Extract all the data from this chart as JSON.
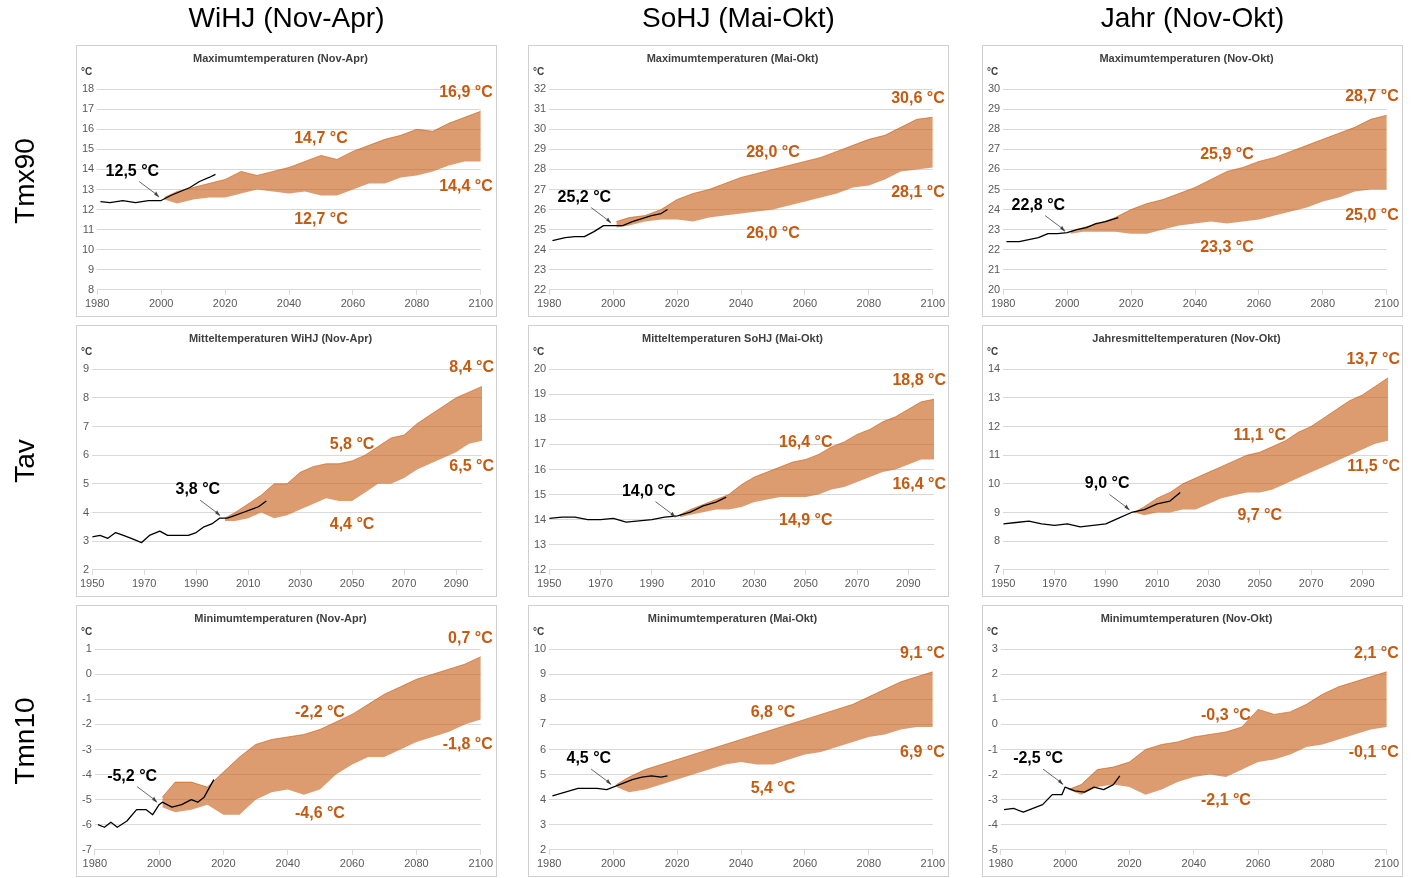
{
  "chart_data": [
    {
      "type": "line",
      "title": "WiHJ (Nov-Apr)",
      "subtitle": "Maximumtemperaturen (Nov-Apr)",
      "ylabel": "°C",
      "xlim": [
        1980,
        2100
      ],
      "xticks": [
        1980,
        2000,
        2020,
        2040,
        2060,
        2080,
        2100
      ],
      "ylim": [
        8,
        18
      ],
      "yticks": [
        8,
        9,
        10,
        11,
        12,
        13,
        14,
        15,
        16,
        17,
        18
      ],
      "grid": "y",
      "legend": false,
      "marker": "none",
      "line_style": "solid",
      "series": [
        {
          "color": "#000000",
          "x": [
            1981,
            1984,
            1988,
            1992,
            1996,
            2000,
            2003,
            2006,
            2009,
            2012,
            2015,
            2017
          ],
          "values": [
            12.4,
            12.35,
            12.45,
            12.35,
            12.45,
            12.45,
            12.7,
            12.9,
            13.1,
            13.4,
            13.6,
            13.75
          ]
        },
        {
          "color": "#c55a11",
          "x": [
            2001,
            2005,
            2010,
            2015,
            2020,
            2025,
            2030,
            2035,
            2040,
            2045,
            2050,
            2055,
            2060,
            2065,
            2070,
            2075,
            2080,
            2085,
            2090,
            2095,
            2100
          ],
          "values": [
            12.6,
            12.9,
            13.1,
            13.3,
            13.5,
            13.9,
            13.7,
            13.9,
            14.1,
            14.4,
            14.7,
            14.5,
            14.9,
            15.2,
            15.5,
            15.7,
            16.0,
            15.9,
            16.3,
            16.6,
            16.9
          ],
          "upper": [
            12.6,
            12.9,
            13.1,
            13.3,
            13.5,
            13.9,
            13.7,
            13.9,
            14.1,
            14.4,
            14.7,
            14.5,
            14.9,
            15.2,
            15.5,
            15.7,
            16.0,
            15.9,
            16.3,
            16.6,
            16.9
          ],
          "lower": [
            12.5,
            12.3,
            12.5,
            12.6,
            12.6,
            12.8,
            13.0,
            12.9,
            12.8,
            12.9,
            12.7,
            12.7,
            13.0,
            13.3,
            13.3,
            13.6,
            13.7,
            13.9,
            14.2,
            14.4,
            14.4
          ]
        }
      ],
      "annotations": [
        "Tmx90",
        {
          "text": "12,5 °C",
          "x": 2000,
          "y": 12.5
        },
        {
          "text": "14,7 °C",
          "x": 2050,
          "y": 14.7
        },
        {
          "text": "12,7 °C",
          "x": 2050,
          "y": 12.7
        },
        {
          "text": "16,9 °C",
          "x": 2100,
          "y": 16.9
        },
        {
          "text": "14,4 °C",
          "x": 2100,
          "y": 14.4
        }
      ]
    },
    {
      "type": "line",
      "title": "SoHJ (Mai-Okt)",
      "subtitle": "Maximumtemperaturen (Mai-Okt)",
      "ylabel": "°C",
      "xlim": [
        1980,
        2100
      ],
      "xticks": [
        1980,
        2000,
        2020,
        2040,
        2060,
        2080,
        2100
      ],
      "ylim": [
        22,
        32
      ],
      "yticks": [
        22,
        23,
        24,
        25,
        26,
        27,
        28,
        29,
        30,
        31,
        32
      ],
      "grid": "y",
      "legend": false,
      "marker": "none",
      "line_style": "solid",
      "series": [
        {
          "color": "#000000",
          "x": [
            1981,
            1985,
            1988,
            1991,
            1994,
            1997,
            2000,
            2003,
            2006,
            2009,
            2012,
            2015,
            2017
          ],
          "values": [
            24.45,
            24.6,
            24.65,
            24.65,
            24.9,
            25.2,
            25.2,
            25.2,
            25.4,
            25.55,
            25.7,
            25.8,
            26.0
          ]
        },
        {
          "color": "#c55a11",
          "x": [
            2001,
            2005,
            2010,
            2015,
            2020,
            2025,
            2030,
            2035,
            2040,
            2045,
            2050,
            2055,
            2060,
            2065,
            2070,
            2075,
            2080,
            2085,
            2090,
            2095,
            2100
          ],
          "values": [
            25.4,
            25.6,
            25.7,
            26.0,
            26.5,
            26.8,
            27.0,
            27.3,
            27.6,
            27.8,
            28.0,
            28.2,
            28.4,
            28.6,
            28.9,
            29.2,
            29.5,
            29.7,
            30.1,
            30.5,
            30.6
          ],
          "upper": [
            25.4,
            25.6,
            25.7,
            26.0,
            26.5,
            26.8,
            27.0,
            27.3,
            27.6,
            27.8,
            28.0,
            28.2,
            28.4,
            28.6,
            28.9,
            29.2,
            29.5,
            29.7,
            30.1,
            30.5,
            30.6
          ],
          "lower": [
            25.1,
            25.2,
            25.4,
            25.5,
            25.5,
            25.4,
            25.6,
            25.7,
            25.8,
            25.9,
            26.0,
            26.2,
            26.4,
            26.6,
            26.8,
            27.1,
            27.2,
            27.5,
            27.9,
            28.0,
            28.1
          ]
        }
      ],
      "annotations": [
        {
          "text": "25,2 °C",
          "x": 2000,
          "y": 25.2
        },
        {
          "text": "28,0 °C",
          "x": 2050,
          "y": 28.0
        },
        {
          "text": "26,0 °C",
          "x": 2050,
          "y": 26.0
        },
        {
          "text": "30,6 °C",
          "x": 2100,
          "y": 30.6
        },
        {
          "text": "28,1 °C",
          "x": 2100,
          "y": 28.1
        }
      ]
    },
    {
      "type": "line",
      "title": "Jahr (Nov-Okt)",
      "subtitle": "Maximumtemperaturen (Nov-Okt)",
      "ylabel": "°C",
      "xlim": [
        1980,
        2100
      ],
      "xticks": [
        1980,
        2000,
        2020,
        2040,
        2060,
        2080,
        2100
      ],
      "ylim": [
        20,
        30
      ],
      "yticks": [
        20,
        21,
        22,
        23,
        24,
        25,
        26,
        27,
        28,
        29,
        30
      ],
      "grid": "y",
      "legend": false,
      "marker": "none",
      "line_style": "solid",
      "series": [
        {
          "color": "#000000",
          "x": [
            1981,
            1985,
            1988,
            1991,
            1994,
            1997,
            2000,
            2003,
            2006,
            2009,
            2012,
            2016
          ],
          "values": [
            22.4,
            22.4,
            22.5,
            22.6,
            22.8,
            22.8,
            22.85,
            23.0,
            23.1,
            23.3,
            23.4,
            23.6
          ]
        },
        {
          "color": "#c55a11",
          "x": [
            2001,
            2005,
            2010,
            2015,
            2020,
            2025,
            2030,
            2035,
            2040,
            2045,
            2050,
            2055,
            2060,
            2065,
            2070,
            2075,
            2080,
            2085,
            2090,
            2095,
            2100
          ],
          "values": [
            22.9,
            23.1,
            23.3,
            23.6,
            24.0,
            24.3,
            24.5,
            24.8,
            25.1,
            25.5,
            25.9,
            26.1,
            26.4,
            26.6,
            26.9,
            27.2,
            27.5,
            27.8,
            28.1,
            28.5,
            28.7
          ],
          "upper": [
            22.9,
            23.1,
            23.3,
            23.6,
            24.0,
            24.3,
            24.5,
            24.8,
            25.1,
            25.5,
            25.9,
            26.1,
            26.4,
            26.6,
            26.9,
            27.2,
            27.5,
            27.8,
            28.1,
            28.5,
            28.7
          ],
          "lower": [
            22.8,
            22.9,
            22.9,
            22.9,
            22.8,
            22.8,
            23.0,
            23.2,
            23.3,
            23.4,
            23.3,
            23.4,
            23.5,
            23.7,
            23.9,
            24.1,
            24.4,
            24.6,
            24.9,
            25.0,
            25.0
          ]
        }
      ],
      "annotations": [
        {
          "text": "22,8 °C",
          "x": 2000,
          "y": 22.8
        },
        {
          "text": "25,9 °C",
          "x": 2050,
          "y": 25.9
        },
        {
          "text": "23,3 °C",
          "x": 2050,
          "y": 23.3
        },
        {
          "text": "28,7 °C",
          "x": 2100,
          "y": 28.7
        },
        {
          "text": "25,0 °C",
          "x": 2100,
          "y": 25.0
        }
      ]
    },
    {
      "type": "line",
      "title": "Mitteltemperaturen WiHJ (Nov-Apr)",
      "ylabel": "°C",
      "xlim": [
        1950,
        2100
      ],
      "xticks": [
        1950,
        1970,
        1990,
        2010,
        2030,
        2050,
        2070,
        2090
      ],
      "ylim": [
        2,
        9
      ],
      "yticks": [
        2,
        3,
        4,
        5,
        6,
        7,
        8,
        9
      ],
      "grid": "y",
      "legend": false,
      "marker": "none",
      "line_style": "solid",
      "series": [
        {
          "color": "#000000",
          "x": [
            1950,
            1953,
            1956,
            1959,
            1962,
            1965,
            1969,
            1972,
            1976,
            1979,
            1983,
            1987,
            1990,
            1993,
            1996,
            1999,
            2002,
            2005,
            2008,
            2011,
            2014,
            2017
          ],
          "values": [
            3.15,
            3.2,
            3.1,
            3.3,
            3.2,
            3.1,
            2.95,
            3.2,
            3.35,
            3.2,
            3.2,
            3.2,
            3.3,
            3.5,
            3.6,
            3.8,
            3.8,
            3.9,
            4.0,
            4.1,
            4.2,
            4.4
          ]
        },
        {
          "color": "#c55a11",
          "x": [
            2001,
            2005,
            2010,
            2015,
            2020,
            2025,
            2030,
            2035,
            2040,
            2045,
            2050,
            2055,
            2060,
            2065,
            2070,
            2075,
            2080,
            2085,
            2090,
            2095,
            2100
          ],
          "values": [
            3.8,
            4.0,
            4.3,
            4.6,
            5.0,
            5.0,
            5.4,
            5.6,
            5.7,
            5.7,
            5.8,
            6.0,
            6.3,
            6.6,
            6.7,
            7.1,
            7.4,
            7.7,
            8.0,
            8.2,
            8.4
          ],
          "upper": [
            3.8,
            4.0,
            4.3,
            4.6,
            5.0,
            5.0,
            5.4,
            5.6,
            5.7,
            5.7,
            5.8,
            6.0,
            6.3,
            6.6,
            6.7,
            7.1,
            7.4,
            7.7,
            8.0,
            8.2,
            8.4
          ],
          "lower": [
            3.7,
            3.7,
            3.8,
            4.0,
            3.8,
            3.9,
            4.1,
            4.3,
            4.5,
            4.4,
            4.4,
            4.7,
            5.0,
            5.0,
            5.2,
            5.5,
            5.7,
            5.9,
            6.1,
            6.4,
            6.5
          ]
        }
      ],
      "annotations": [
        "Tav",
        {
          "text": "3,8 °C",
          "x": 2000,
          "y": 3.8
        },
        {
          "text": "5,8 °C",
          "x": 2050,
          "y": 5.8
        },
        {
          "text": "4,4 °C",
          "x": 2050,
          "y": 4.4
        },
        {
          "text": "8,4 °C",
          "x": 2100,
          "y": 8.4
        },
        {
          "text": "6,5 °C",
          "x": 2100,
          "y": 6.5
        }
      ]
    },
    {
      "type": "line",
      "title": "Mitteltemperaturen SoHJ (Mai-Okt)",
      "ylabel": "°C",
      "xlim": [
        1950,
        2100
      ],
      "xticks": [
        1950,
        1970,
        1990,
        2010,
        2030,
        2050,
        2070,
        2090
      ],
      "ylim": [
        12,
        20
      ],
      "yticks": [
        12,
        13,
        14,
        15,
        16,
        17,
        18,
        19,
        20
      ],
      "grid": "y",
      "legend": false,
      "marker": "none",
      "line_style": "solid",
      "series": [
        {
          "color": "#000000",
          "x": [
            1950,
            1955,
            1960,
            1965,
            1970,
            1975,
            1980,
            1985,
            1990,
            1995,
            2000,
            2005,
            2010,
            2015,
            2019
          ],
          "values": [
            14.05,
            14.1,
            14.1,
            14.0,
            14.0,
            14.05,
            13.9,
            13.95,
            14.0,
            14.1,
            14.15,
            14.3,
            14.55,
            14.7,
            14.9
          ]
        },
        {
          "color": "#c55a11",
          "x": [
            2001,
            2005,
            2010,
            2015,
            2020,
            2025,
            2030,
            2035,
            2040,
            2045,
            2050,
            2055,
            2060,
            2065,
            2070,
            2075,
            2080,
            2085,
            2090,
            2095,
            2100
          ],
          "values": [
            14.2,
            14.4,
            14.6,
            14.8,
            15.0,
            15.4,
            15.7,
            15.9,
            16.1,
            16.3,
            16.4,
            16.6,
            16.9,
            17.1,
            17.4,
            17.6,
            17.9,
            18.1,
            18.4,
            18.7,
            18.8
          ],
          "upper": [
            14.2,
            14.4,
            14.6,
            14.8,
            15.0,
            15.4,
            15.7,
            15.9,
            16.1,
            16.3,
            16.4,
            16.6,
            16.9,
            17.1,
            17.4,
            17.6,
            17.9,
            18.1,
            18.4,
            18.7,
            18.8
          ],
          "lower": [
            14.1,
            14.2,
            14.3,
            14.4,
            14.4,
            14.5,
            14.7,
            14.8,
            14.9,
            14.9,
            14.9,
            15.0,
            15.2,
            15.3,
            15.5,
            15.7,
            15.9,
            16.0,
            16.2,
            16.4,
            16.4
          ]
        }
      ],
      "annotations": [
        {
          "text": "14,0 °C",
          "x": 2000,
          "y": 14.0
        },
        {
          "text": "16,4 °C",
          "x": 2050,
          "y": 16.4
        },
        {
          "text": "14,9 °C",
          "x": 2050,
          "y": 14.9
        },
        {
          "text": "18,8 °C",
          "x": 2100,
          "y": 18.8
        },
        {
          "text": "16,4 °C",
          "x": 2100,
          "y": 16.4
        }
      ]
    },
    {
      "type": "line",
      "title": "Jahresmitteltemperaturen (Nov-Okt)",
      "ylabel": "°C",
      "xlim": [
        1950,
        2100
      ],
      "xticks": [
        1950,
        1970,
        1990,
        2010,
        2030,
        2050,
        2070,
        2090
      ],
      "ylim": [
        7,
        14
      ],
      "yticks": [
        7,
        8,
        9,
        10,
        11,
        12,
        13,
        14
      ],
      "grid": "y",
      "legend": false,
      "marker": "none",
      "line_style": "solid",
      "series": [
        {
          "color": "#000000",
          "x": [
            1950,
            1955,
            1960,
            1965,
            1970,
            1975,
            1980,
            1985,
            1990,
            1995,
            2000,
            2005,
            2010,
            2015,
            2019
          ],
          "values": [
            8.6,
            8.65,
            8.7,
            8.6,
            8.55,
            8.6,
            8.5,
            8.55,
            8.6,
            8.8,
            9.0,
            9.1,
            9.3,
            9.4,
            9.7
          ]
        },
        {
          "color": "#c55a11",
          "x": [
            2001,
            2005,
            2010,
            2015,
            2020,
            2025,
            2030,
            2035,
            2040,
            2045,
            2050,
            2055,
            2060,
            2065,
            2070,
            2075,
            2080,
            2085,
            2090,
            2095,
            2100
          ],
          "values": [
            9.0,
            9.2,
            9.5,
            9.7,
            10.0,
            10.2,
            10.4,
            10.6,
            10.8,
            11.0,
            11.1,
            11.3,
            11.5,
            11.8,
            12.0,
            12.3,
            12.6,
            12.9,
            13.1,
            13.4,
            13.7
          ],
          "upper": [
            9.0,
            9.2,
            9.5,
            9.7,
            10.0,
            10.2,
            10.4,
            10.6,
            10.8,
            11.0,
            11.1,
            11.3,
            11.5,
            11.8,
            12.0,
            12.3,
            12.6,
            12.9,
            13.1,
            13.4,
            13.7
          ],
          "lower": [
            9.0,
            8.9,
            9.0,
            9.0,
            9.1,
            9.1,
            9.3,
            9.5,
            9.6,
            9.7,
            9.7,
            9.8,
            10.0,
            10.2,
            10.4,
            10.6,
            10.8,
            11.0,
            11.2,
            11.4,
            11.5
          ]
        }
      ],
      "annotations": [
        {
          "text": "9,0 °C",
          "x": 2000,
          "y": 9.0
        },
        {
          "text": "11,1 °C",
          "x": 2050,
          "y": 11.1
        },
        {
          "text": "9,7 °C",
          "x": 2050,
          "y": 9.7
        },
        {
          "text": "13,7 °C",
          "x": 2100,
          "y": 13.7
        },
        {
          "text": "11,5 °C",
          "x": 2100,
          "y": 11.5
        }
      ]
    },
    {
      "type": "line",
      "title": "Minimumtemperaturen (Nov-Apr)",
      "ylabel": "°C",
      "xlim": [
        1980,
        2100
      ],
      "xticks": [
        1980,
        2000,
        2020,
        2040,
        2060,
        2080,
        2100
      ],
      "ylim": [
        -7,
        1
      ],
      "yticks": [
        -7,
        -6,
        -5,
        -4,
        -3,
        -2,
        -1,
        0,
        1
      ],
      "grid": "y",
      "legend": false,
      "marker": "none",
      "line_style": "solid",
      "series": [
        {
          "color": "#000000",
          "x": [
            1981,
            1983,
            1985,
            1987,
            1990,
            1993,
            1996,
            1998,
            2000,
            2001,
            2004,
            2007,
            2010,
            2012,
            2014,
            2017
          ],
          "values": [
            -6.0,
            -6.1,
            -5.9,
            -6.1,
            -5.85,
            -5.4,
            -5.4,
            -5.6,
            -5.2,
            -5.1,
            -5.3,
            -5.2,
            -5.0,
            -5.1,
            -4.9,
            -4.2
          ]
        },
        {
          "color": "#c55a11",
          "x": [
            2001,
            2005,
            2010,
            2015,
            2020,
            2025,
            2030,
            2035,
            2040,
            2045,
            2050,
            2055,
            2060,
            2065,
            2070,
            2075,
            2080,
            2085,
            2090,
            2095,
            2100
          ],
          "values": [
            -4.9,
            -4.3,
            -4.3,
            -4.5,
            -3.9,
            -3.3,
            -2.8,
            -2.6,
            -2.5,
            -2.4,
            -2.2,
            -1.9,
            -1.6,
            -1.2,
            -0.8,
            -0.5,
            -0.2,
            0.0,
            0.2,
            0.4,
            0.7
          ],
          "upper": [
            -4.9,
            -4.3,
            -4.3,
            -4.5,
            -3.9,
            -3.3,
            -2.8,
            -2.6,
            -2.5,
            -2.4,
            -2.2,
            -1.9,
            -1.6,
            -1.2,
            -0.8,
            -0.5,
            -0.2,
            0.0,
            0.2,
            0.4,
            0.7
          ],
          "lower": [
            -5.3,
            -5.5,
            -5.4,
            -5.2,
            -5.6,
            -5.6,
            -5.0,
            -4.7,
            -4.6,
            -4.8,
            -4.6,
            -4.0,
            -3.6,
            -3.3,
            -3.3,
            -3.0,
            -2.7,
            -2.5,
            -2.3,
            -2.0,
            -1.8
          ]
        }
      ],
      "annotations": [
        "Tmn10",
        {
          "text": "-5,2 °C",
          "x": 2000,
          "y": -5.2
        },
        {
          "text": "-2,2 °C",
          "x": 2050,
          "y": -2.2
        },
        {
          "text": "-4,6 °C",
          "x": 2050,
          "y": -4.6
        },
        {
          "text": "0,7 °C",
          "x": 2100,
          "y": 0.7
        },
        {
          "text": "-1,8 °C",
          "x": 2100,
          "y": -1.8
        }
      ]
    },
    {
      "type": "line",
      "title": "Minimumtemperaturen (Mai-Okt)",
      "ylabel": "°C",
      "xlim": [
        1980,
        2100
      ],
      "xticks": [
        1980,
        2000,
        2020,
        2040,
        2060,
        2080,
        2100
      ],
      "ylim": [
        2,
        10
      ],
      "yticks": [
        2,
        3,
        4,
        5,
        6,
        7,
        8,
        9,
        10
      ],
      "grid": "y",
      "legend": false,
      "marker": "none",
      "line_style": "solid",
      "series": [
        {
          "color": "#000000",
          "x": [
            1981,
            1985,
            1989,
            1992,
            1995,
            1998,
            2000,
            2003,
            2006,
            2009,
            2012,
            2015,
            2017
          ],
          "values": [
            4.15,
            4.3,
            4.45,
            4.45,
            4.45,
            4.4,
            4.5,
            4.65,
            4.8,
            4.9,
            4.95,
            4.9,
            4.95
          ]
        },
        {
          "color": "#c55a11",
          "x": [
            2001,
            2005,
            2010,
            2015,
            2020,
            2025,
            2030,
            2035,
            2040,
            2045,
            2050,
            2055,
            2060,
            2065,
            2070,
            2075,
            2080,
            2085,
            2090,
            2095,
            2100
          ],
          "values": [
            4.6,
            4.9,
            5.2,
            5.4,
            5.6,
            5.8,
            6.0,
            6.2,
            6.4,
            6.6,
            6.8,
            7.0,
            7.2,
            7.4,
            7.6,
            7.8,
            8.1,
            8.4,
            8.7,
            8.9,
            9.1
          ],
          "upper": [
            4.6,
            4.9,
            5.2,
            5.4,
            5.6,
            5.8,
            6.0,
            6.2,
            6.4,
            6.6,
            6.8,
            7.0,
            7.2,
            7.4,
            7.6,
            7.8,
            8.1,
            8.4,
            8.7,
            8.9,
            9.1
          ],
          "lower": [
            4.5,
            4.3,
            4.4,
            4.6,
            4.8,
            5.0,
            5.2,
            5.4,
            5.5,
            5.4,
            5.4,
            5.6,
            5.8,
            5.9,
            6.1,
            6.3,
            6.5,
            6.6,
            6.8,
            6.9,
            6.9
          ]
        }
      ],
      "annotations": [
        {
          "text": "4,5 °C",
          "x": 2000,
          "y": 4.5
        },
        {
          "text": "6,8 °C",
          "x": 2050,
          "y": 6.8
        },
        {
          "text": "5,4 °C",
          "x": 2050,
          "y": 5.4
        },
        {
          "text": "9,1 °C",
          "x": 2100,
          "y": 9.1
        },
        {
          "text": "6,9 °C",
          "x": 2100,
          "y": 6.9
        }
      ]
    },
    {
      "type": "line",
      "title": "Minimumtemperaturen (Nov-Okt)",
      "ylabel": "°C",
      "xlim": [
        1980,
        2100
      ],
      "xticks": [
        1980,
        2000,
        2020,
        2040,
        2060,
        2080,
        2100
      ],
      "ylim": [
        -5,
        3
      ],
      "yticks": [
        -5,
        -4,
        -3,
        -2,
        -1,
        0,
        1,
        2,
        3
      ],
      "grid": "y",
      "legend": false,
      "marker": "none",
      "line_style": "solid",
      "series": [
        {
          "color": "#000000",
          "x": [
            1981,
            1984,
            1987,
            1990,
            1993,
            1996,
            1999,
            2000,
            2003,
            2006,
            2009,
            2012,
            2015,
            2017
          ],
          "values": [
            -3.4,
            -3.35,
            -3.5,
            -3.35,
            -3.2,
            -2.8,
            -2.8,
            -2.5,
            -2.65,
            -2.7,
            -2.5,
            -2.6,
            -2.4,
            -2.05
          ]
        },
        {
          "color": "#c55a11",
          "x": [
            2001,
            2005,
            2010,
            2015,
            2020,
            2025,
            2030,
            2035,
            2040,
            2045,
            2050,
            2055,
            2060,
            2065,
            2070,
            2075,
            2080,
            2085,
            2090,
            2095,
            2100
          ],
          "values": [
            -2.6,
            -2.4,
            -1.8,
            -1.7,
            -1.5,
            -1.0,
            -0.8,
            -0.7,
            -0.5,
            -0.4,
            -0.3,
            -0.1,
            0.6,
            0.4,
            0.5,
            0.8,
            1.2,
            1.5,
            1.7,
            1.9,
            2.1
          ],
          "upper": [
            -2.6,
            -2.4,
            -1.8,
            -1.7,
            -1.5,
            -1.0,
            -0.8,
            -0.7,
            -0.5,
            -0.4,
            -0.3,
            -0.1,
            0.6,
            0.4,
            0.5,
            0.8,
            1.2,
            1.5,
            1.7,
            1.9,
            2.1
          ],
          "lower": [
            -2.6,
            -2.8,
            -2.5,
            -2.4,
            -2.5,
            -2.8,
            -2.6,
            -2.3,
            -2.1,
            -2.0,
            -2.1,
            -1.8,
            -1.5,
            -1.4,
            -1.2,
            -0.9,
            -0.8,
            -0.6,
            -0.4,
            -0.2,
            -0.1
          ]
        }
      ],
      "annotations": [
        {
          "text": "-2,5 °C",
          "x": 2000,
          "y": -2.5
        },
        {
          "text": "-0,3 °C",
          "x": 2050,
          "y": -0.3
        },
        {
          "text": "-2,1 °C",
          "x": 2050,
          "y": -2.1
        },
        {
          "text": "2,1 °C",
          "x": 2100,
          "y": 2.1
        },
        {
          "text": "-0,1 °C",
          "x": 2100,
          "y": -0.1
        }
      ]
    }
  ]
}
